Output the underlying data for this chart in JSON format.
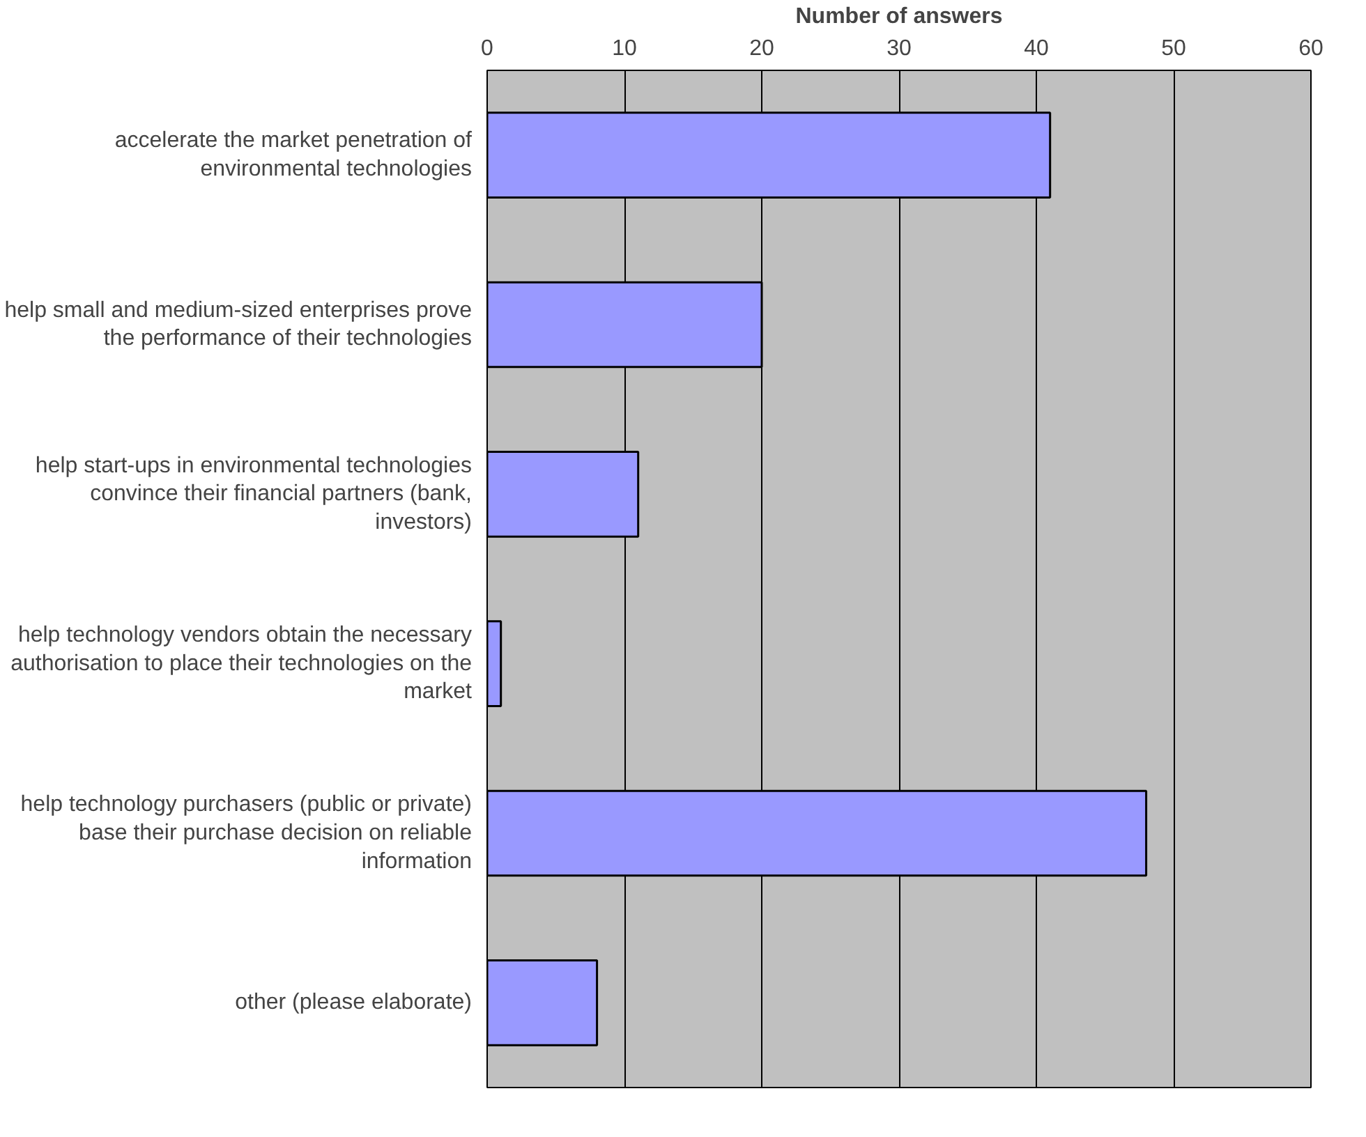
{
  "chart_data": {
    "type": "bar",
    "orientation": "horizontal",
    "xlabel": "Number of answers",
    "categories": [
      "accelerate the market penetration of environmental technologies",
      "help small and medium-sized enterprises prove the performance of their technologies",
      "help start-ups in environmental technologies convince their financial partners (bank, investors)",
      "help technology vendors obtain the necessary authorisation to place their technologies on the market",
      "help technology purchasers (public or private) base their purchase decision on reliable information",
      "other (please elaborate)"
    ],
    "values": [
      41,
      20,
      11,
      1,
      48,
      8
    ],
    "color": "#9999ff",
    "xlim": [
      0,
      60
    ],
    "xticks": [
      0,
      10,
      20,
      30,
      40,
      50,
      60
    ],
    "grid": "x"
  }
}
